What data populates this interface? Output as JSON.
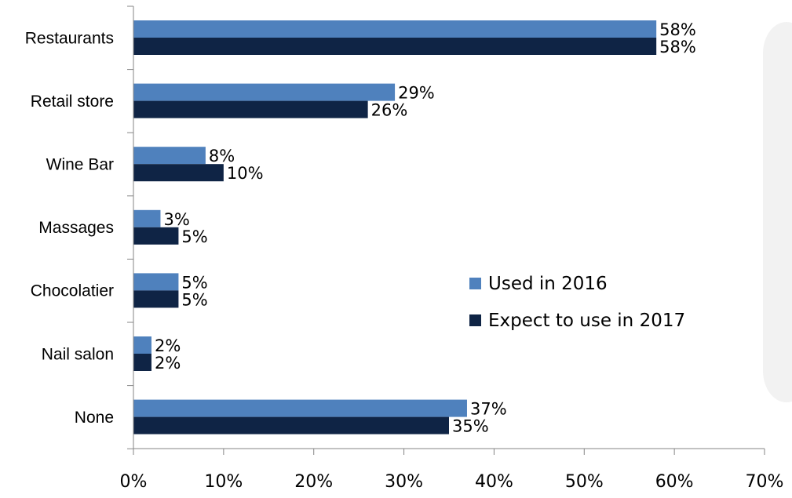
{
  "chart_data": {
    "type": "bar",
    "orientation": "horizontal",
    "categories": [
      "Restaurants",
      "Retail store",
      "Wine Bar",
      "Massages",
      "Chocolatier",
      "Nail salon",
      "None"
    ],
    "series": [
      {
        "name": "Used in 2016",
        "values": [
          58,
          29,
          8,
          3,
          5,
          2,
          37
        ],
        "color": "#4f81bd"
      },
      {
        "name": "Expect to use in 2017",
        "values": [
          58,
          26,
          10,
          5,
          5,
          2,
          35
        ],
        "color": "#0f2445"
      }
    ],
    "xlim": [
      0,
      70
    ],
    "xticks": [
      0,
      10,
      20,
      30,
      40,
      50,
      60,
      70
    ],
    "value_suffix": "%",
    "grid": false,
    "legend": "right",
    "side_panel_color": "#f2f2f2"
  }
}
